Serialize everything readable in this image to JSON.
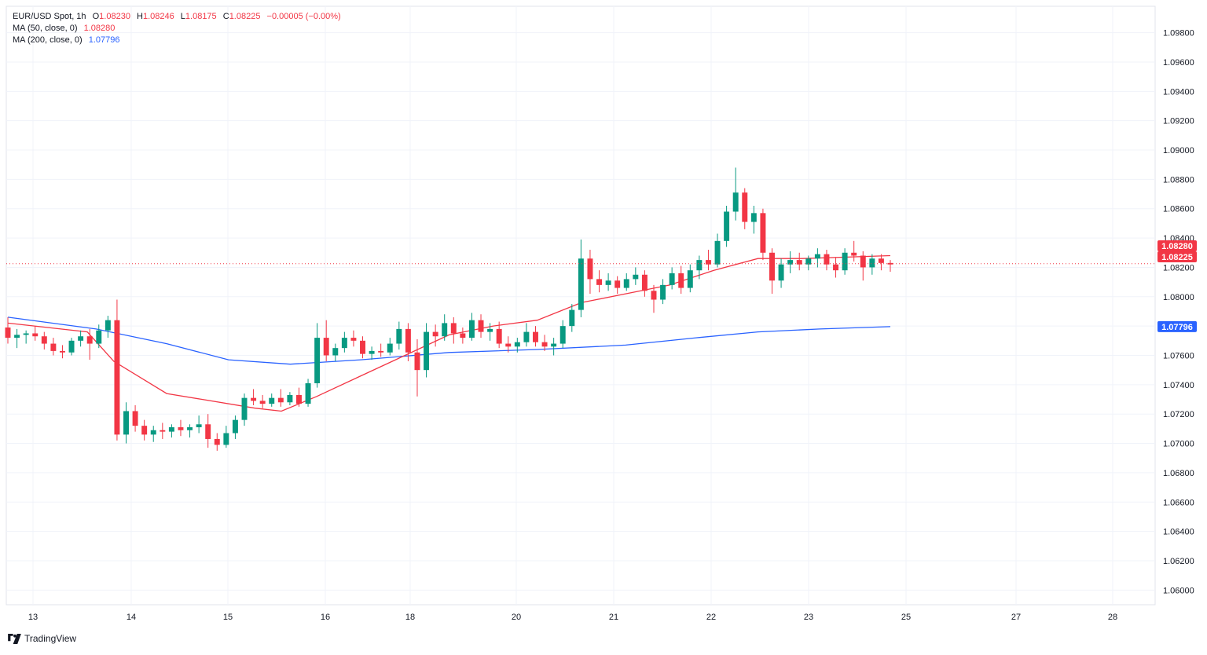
{
  "header": {
    "symbol": "EUR/USD Spot, 1h",
    "o_label": "O",
    "o_value": "1.08230",
    "h_label": "H",
    "h_value": "1.08246",
    "l_label": "L",
    "l_value": "1.08175",
    "c_label": "C",
    "c_value": "1.08225",
    "change": "−0.00005 (−0.00%)",
    "ma50_label": "MA (50, close, 0)",
    "ma50_value": "1.08280",
    "ma200_label": "MA (200, close, 0)",
    "ma200_value": "1.07796"
  },
  "footer": {
    "brand": "TradingView"
  },
  "colors": {
    "up": "#089981",
    "down": "#f23645",
    "ma50": "#f23645",
    "ma200": "#2962ff",
    "grid": "#f0f3fa"
  },
  "chart_data": {
    "type": "candlestick",
    "title": "EUR/USD Spot, 1h",
    "ylim": [
      1.059,
      1.0998
    ],
    "y_ticks": [
      "1.06000",
      "1.06200",
      "1.06400",
      "1.06600",
      "1.06800",
      "1.07000",
      "1.07200",
      "1.07400",
      "1.07600",
      "1.07800",
      "1.08000",
      "1.08200",
      "1.08400",
      "1.08600",
      "1.08800",
      "1.09000",
      "1.09200",
      "1.09400",
      "1.09600",
      "1.09800"
    ],
    "x_ticks": [
      "13",
      "14",
      "15",
      "16",
      "18",
      "20",
      "21",
      "22",
      "23",
      "25",
      "27",
      "28"
    ],
    "candles": [
      [
        1.0779,
        1.0786,
        1.0768,
        1.0772
      ],
      [
        1.0772,
        1.0778,
        1.0765,
        1.0774
      ],
      [
        1.0774,
        1.0777,
        1.0768,
        1.0775
      ],
      [
        1.0775,
        1.078,
        1.077,
        1.0773
      ],
      [
        1.0773,
        1.0776,
        1.0764,
        1.0768
      ],
      [
        1.0768,
        1.0772,
        1.076,
        1.0763
      ],
      [
        1.0763,
        1.0767,
        1.0758,
        1.0762
      ],
      [
        1.0762,
        1.0772,
        1.076,
        1.077
      ],
      [
        1.077,
        1.0777,
        1.0766,
        1.0773
      ],
      [
        1.0773,
        1.0778,
        1.0757,
        1.0768
      ],
      [
        1.0768,
        1.0781,
        1.0765,
        1.0777
      ],
      [
        1.0777,
        1.0787,
        1.0772,
        1.0784
      ],
      [
        1.0784,
        1.0798,
        1.0702,
        1.0706
      ],
      [
        1.0706,
        1.0728,
        1.07,
        1.0722
      ],
      [
        1.0722,
        1.0726,
        1.0708,
        1.0712
      ],
      [
        1.0712,
        1.0716,
        1.0702,
        1.0706
      ],
      [
        1.0706,
        1.0712,
        1.0701,
        1.0709
      ],
      [
        1.0709,
        1.0714,
        1.0703,
        1.0708
      ],
      [
        1.0708,
        1.0713,
        1.0704,
        1.0711
      ],
      [
        1.0711,
        1.0716,
        1.0705,
        1.0709
      ],
      [
        1.0709,
        1.0713,
        1.0704,
        1.0711
      ],
      [
        1.0711,
        1.0719,
        1.0707,
        1.0713
      ],
      [
        1.0713,
        1.072,
        1.0697,
        1.0703
      ],
      [
        1.0703,
        1.0707,
        1.0695,
        1.0699
      ],
      [
        1.0699,
        1.0712,
        1.0697,
        1.0707
      ],
      [
        1.0707,
        1.0719,
        1.0703,
        1.0716
      ],
      [
        1.0716,
        1.0734,
        1.0712,
        1.0731
      ],
      [
        1.0731,
        1.0737,
        1.0726,
        1.0729
      ],
      [
        1.0729,
        1.0733,
        1.0724,
        1.0727
      ],
      [
        1.0727,
        1.0734,
        1.0725,
        1.0731
      ],
      [
        1.0731,
        1.0737,
        1.0725,
        1.0728
      ],
      [
        1.0728,
        1.0735,
        1.0726,
        1.0733
      ],
      [
        1.0733,
        1.0738,
        1.0725,
        1.0727
      ],
      [
        1.0727,
        1.0744,
        1.0725,
        1.0741
      ],
      [
        1.0741,
        1.0782,
        1.0738,
        1.0772
      ],
      [
        1.0772,
        1.0784,
        1.0756,
        1.076
      ],
      [
        1.076,
        1.0768,
        1.0756,
        1.0765
      ],
      [
        1.0765,
        1.0776,
        1.0762,
        1.0772
      ],
      [
        1.0772,
        1.0777,
        1.0766,
        1.077
      ],
      [
        1.077,
        1.0773,
        1.0758,
        1.0761
      ],
      [
        1.0761,
        1.0766,
        1.0757,
        1.0763
      ],
      [
        1.0763,
        1.0768,
        1.0759,
        1.0762
      ],
      [
        1.0762,
        1.0772,
        1.076,
        1.0768
      ],
      [
        1.0768,
        1.0783,
        1.0764,
        1.0778
      ],
      [
        1.0778,
        1.0782,
        1.0756,
        1.0762
      ],
      [
        1.0762,
        1.0771,
        1.0732,
        1.075
      ],
      [
        1.075,
        1.0782,
        1.0745,
        1.0776
      ],
      [
        1.0776,
        1.0781,
        1.0766,
        1.0773
      ],
      [
        1.0773,
        1.0788,
        1.077,
        1.0782
      ],
      [
        1.0782,
        1.0786,
        1.0768,
        1.0775
      ],
      [
        1.0775,
        1.0779,
        1.0768,
        1.0772
      ],
      [
        1.0772,
        1.0789,
        1.077,
        1.0784
      ],
      [
        1.0784,
        1.0788,
        1.0772,
        1.0776
      ],
      [
        1.0776,
        1.0782,
        1.077,
        1.0778
      ],
      [
        1.0778,
        1.0783,
        1.0765,
        1.0768
      ],
      [
        1.0768,
        1.0773,
        1.0762,
        1.0766
      ],
      [
        1.0766,
        1.0772,
        1.0762,
        1.0769
      ],
      [
        1.0769,
        1.0782,
        1.0766,
        1.0776
      ],
      [
        1.0776,
        1.078,
        1.0766,
        1.0769
      ],
      [
        1.0769,
        1.0774,
        1.0763,
        1.0766
      ],
      [
        1.0766,
        1.0772,
        1.076,
        1.0768
      ],
      [
        1.0768,
        1.0784,
        1.0765,
        1.078
      ],
      [
        1.078,
        1.0795,
        1.0776,
        1.0791
      ],
      [
        1.0791,
        1.0839,
        1.0786,
        1.0826
      ],
      [
        1.0826,
        1.0832,
        1.0802,
        1.0812
      ],
      [
        1.0812,
        1.0818,
        1.0803,
        1.0808
      ],
      [
        1.0808,
        1.0816,
        1.0804,
        1.0811
      ],
      [
        1.0811,
        1.0814,
        1.0802,
        1.0806
      ],
      [
        1.0806,
        1.0816,
        1.0804,
        1.0812
      ],
      [
        1.0812,
        1.082,
        1.0808,
        1.0815
      ],
      [
        1.0815,
        1.0818,
        1.08,
        1.0804
      ],
      [
        1.0804,
        1.0808,
        1.0789,
        1.0798
      ],
      [
        1.0798,
        1.0812,
        1.0795,
        1.0808
      ],
      [
        1.0808,
        1.082,
        1.0805,
        1.0816
      ],
      [
        1.0816,
        1.0821,
        1.0802,
        1.0806
      ],
      [
        1.0806,
        1.0822,
        1.0803,
        1.0818
      ],
      [
        1.0818,
        1.0828,
        1.0812,
        1.0825
      ],
      [
        1.0825,
        1.0832,
        1.0818,
        1.0822
      ],
      [
        1.0822,
        1.0843,
        1.082,
        1.0838
      ],
      [
        1.0838,
        1.0862,
        1.0834,
        1.0858
      ],
      [
        1.0858,
        1.0888,
        1.0852,
        1.0871
      ],
      [
        1.0871,
        1.0874,
        1.0846,
        1.0851
      ],
      [
        1.0851,
        1.0862,
        1.0843,
        1.0857
      ],
      [
        1.0857,
        1.086,
        1.0825,
        1.083
      ],
      [
        1.083,
        1.0833,
        1.0802,
        1.0811
      ],
      [
        1.0811,
        1.0826,
        1.0806,
        1.0822
      ],
      [
        1.0822,
        1.0831,
        1.0816,
        1.0825
      ],
      [
        1.0825,
        1.083,
        1.0818,
        1.0822
      ],
      [
        1.0822,
        1.0828,
        1.0818,
        1.0826
      ],
      [
        1.0826,
        1.0833,
        1.082,
        1.0829
      ],
      [
        1.0829,
        1.0832,
        1.0818,
        1.0822
      ],
      [
        1.0822,
        1.0827,
        1.0813,
        1.0818
      ],
      [
        1.0818,
        1.0833,
        1.0815,
        1.083
      ],
      [
        1.083,
        1.0838,
        1.0824,
        1.0828
      ],
      [
        1.0828,
        1.0831,
        1.0811,
        1.082
      ],
      [
        1.082,
        1.0829,
        1.0815,
        1.0826
      ],
      [
        1.0826,
        1.0829,
        1.0818,
        1.0823
      ],
      [
        1.0823,
        1.0825,
        1.0817,
        1.0822
      ]
    ],
    "ma50": [
      [
        0,
        1.0782
      ],
      [
        0.09,
        1.0776
      ],
      [
        0.12,
        1.0756
      ],
      [
        0.18,
        1.0734
      ],
      [
        0.22,
        1.073
      ],
      [
        0.28,
        1.0724
      ],
      [
        0.31,
        1.0722
      ],
      [
        0.35,
        1.0732
      ],
      [
        0.4,
        1.0746
      ],
      [
        0.45,
        1.076
      ],
      [
        0.5,
        1.0774
      ],
      [
        0.55,
        1.078
      ],
      [
        0.6,
        1.0784
      ],
      [
        0.65,
        1.0796
      ],
      [
        0.7,
        1.0802
      ],
      [
        0.75,
        1.0808
      ],
      [
        0.8,
        1.0818
      ],
      [
        0.85,
        1.0826
      ],
      [
        0.9,
        1.0826
      ],
      [
        0.95,
        1.0827
      ],
      [
        1.0,
        1.0828
      ]
    ],
    "ma200": [
      [
        0,
        1.0786
      ],
      [
        0.1,
        1.0778
      ],
      [
        0.18,
        1.0768
      ],
      [
        0.25,
        1.0757
      ],
      [
        0.32,
        1.0754
      ],
      [
        0.4,
        1.0757
      ],
      [
        0.5,
        1.0762
      ],
      [
        0.6,
        1.0764
      ],
      [
        0.7,
        1.0767
      ],
      [
        0.78,
        1.0772
      ],
      [
        0.85,
        1.0776
      ],
      [
        0.92,
        1.0778
      ],
      [
        1.0,
        1.07796
      ]
    ],
    "last_price_label": "1.08225",
    "ma50_label": "1.08280",
    "ma200_label": "1.07796"
  }
}
